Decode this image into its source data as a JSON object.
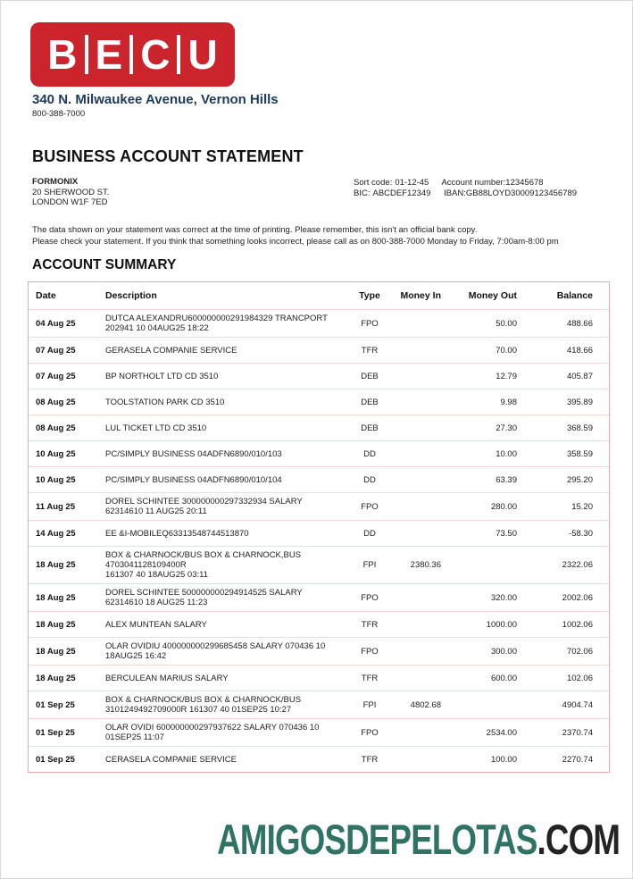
{
  "colors": {
    "logo_red": "#cc242c",
    "address_navy": "#1b3a5e",
    "table_border_pink": "#eaa9a9",
    "row_separator_pink": "#f4d9d9",
    "footer_teal": "#2f7364",
    "footer_dark": "#232323"
  },
  "logo": {
    "letters": [
      "B",
      "E",
      "C",
      "U"
    ]
  },
  "header": {
    "address": "340 N. Milwaukee Avenue, Vernon Hills",
    "phone": "800-388-7000",
    "title": "BUSINESS ACCOUNT STATEMENT",
    "recipient": {
      "name": "FORMONIX",
      "address_line1": "20 SHERWOOD ST.",
      "address_line2": "LONDON W1F 7ED"
    },
    "account_info": {
      "sort_code_label": "Sort code:",
      "sort_code_value": "01-12-45",
      "account_number_label": "Account number:",
      "account_number_value": "12345678",
      "bic_label": "BIC:",
      "bic_value": "ABCDEF12349",
      "iban_label": "IBAN:",
      "iban_value": "GB88LOYD30009123456789"
    },
    "notice_line1": "The data shown on your statement was correct at the time of printing. Please remember, this isn't an official bank copy.",
    "notice_line2": "Please check your statement. If you think that something looks incorrect, please call as on 800-388-7000 Monday to Friday, 7:00am-8:00 pm"
  },
  "summary": {
    "heading": "ACCOUNT SUMMARY",
    "columns": [
      "Date",
      "Description",
      "Type",
      "Money In",
      "Money Out",
      "Balance"
    ],
    "rows": [
      {
        "date": "04 Aug 25",
        "desc1": "DUTCA ALEXANDRU600000000291984329 TRANCPORT",
        "desc2": "202941 10 04AUG25 18:22",
        "type": "FPO",
        "money_in": "",
        "money_out": "50.00",
        "balance": "488.66"
      },
      {
        "date": "07 Aug 25",
        "desc1": "GERASELA COMPANIE SERVICE",
        "desc2": "",
        "type": "TFR",
        "money_in": "",
        "money_out": "70.00",
        "balance": "418.66"
      },
      {
        "date": "07 Aug 25",
        "desc1": "BP NORTHOLT LTD CD 3510",
        "desc2": "",
        "type": "DEB",
        "money_in": "",
        "money_out": "12.79",
        "balance": "405.87"
      },
      {
        "date": "08 Aug 25",
        "desc1": "TOOLSTATION PARK CD 3510",
        "desc2": "",
        "type": "DEB",
        "money_in": "",
        "money_out": "9.98",
        "balance": "395.89"
      },
      {
        "date": "08 Aug 25",
        "desc1": "LUL TICKET LTD CD 3510",
        "desc2": "",
        "type": "DEB",
        "money_in": "",
        "money_out": "27.30",
        "balance": "368.59"
      },
      {
        "date": "10 Aug 25",
        "desc1": "PC/SIMPLY BUSINESS 04ADFN6890/010/103",
        "desc2": "",
        "type": "DD",
        "money_in": "",
        "money_out": "10.00",
        "balance": "358.59"
      },
      {
        "date": "10 Aug 25",
        "desc1": "PC/SIMPLY BUSINESS 04ADFN6890/010/104",
        "desc2": "",
        "type": "DD",
        "money_in": "",
        "money_out": "63.39",
        "balance": "295.20"
      },
      {
        "date": "11 Aug 25",
        "desc1": "DOREL SCHINTEE 300000000297332934 SALARY",
        "desc2": "62314610 11 AUG25 20:11",
        "type": "FPO",
        "money_in": "",
        "money_out": "280.00",
        "balance": "15.20"
      },
      {
        "date": "14 Aug 25",
        "desc1": "EE &I-MOBILEQ63313548744513870",
        "desc2": "",
        "type": "DD",
        "money_in": "",
        "money_out": "73.50",
        "balance": "-58.30"
      },
      {
        "date": "18 Aug 25",
        "desc1": "BOX & CHARNOCK/BUS BOX & CHARNOCK,BUS 4703041128109400R",
        "desc2": "161307 40 18AUG25 03:11",
        "type": "FPI",
        "money_in": "2380.36",
        "money_out": "",
        "balance": "2322.06"
      },
      {
        "date": "18 Aug 25",
        "desc1": "DOREL SCHINTEE 500000000294914525 SALARY",
        "desc2": "62314610 18 AUG25 11:23",
        "type": "FPO",
        "money_in": "",
        "money_out": "320.00",
        "balance": "2002.06"
      },
      {
        "date": "18 Aug 25",
        "desc1": "ALEX MUNTEAN SALARY",
        "desc2": "",
        "type": "TFR",
        "money_in": "",
        "money_out": "1000.00",
        "balance": "1002.06"
      },
      {
        "date": "18 Aug 25",
        "desc1": "OLAR OVIDIU 400000000299685458 SALARY 070436 10",
        "desc2": "18AUG25 16:42",
        "type": "FPO",
        "money_in": "",
        "money_out": "300.00",
        "balance": "702.06"
      },
      {
        "date": "18 Aug 25",
        "desc1": "BERCULEAN MARIUS SALARY",
        "desc2": "",
        "type": "TFR",
        "money_in": "",
        "money_out": "600.00",
        "balance": "102.06"
      },
      {
        "date": "01 Sep 25",
        "desc1": "BOX & CHARNOCK/BUS BOX & CHARNOCK/BUS",
        "desc2": "3101249492709000R 161307 40 01SEP25 10:27",
        "type": "FPI",
        "money_in": "4802.68",
        "money_out": "",
        "balance": "4904.74"
      },
      {
        "date": "01 Sep 25",
        "desc1": "OLAR OVIDI 600000000297937622 SALARY 070436 10",
        "desc2": "01SEP25 11:07",
        "type": "FPO",
        "money_in": "",
        "money_out": "2534.00",
        "balance": "2370.74"
      },
      {
        "date": "01 Sep 25",
        "desc1": "CERASELA COMPANIE SERVICE",
        "desc2": "",
        "type": "TFR",
        "money_in": "",
        "money_out": "100.00",
        "balance": "2270.74"
      }
    ]
  },
  "footer": {
    "site_name": "AMIGOSDEPELOTAS",
    "site_tld": ".COM"
  }
}
